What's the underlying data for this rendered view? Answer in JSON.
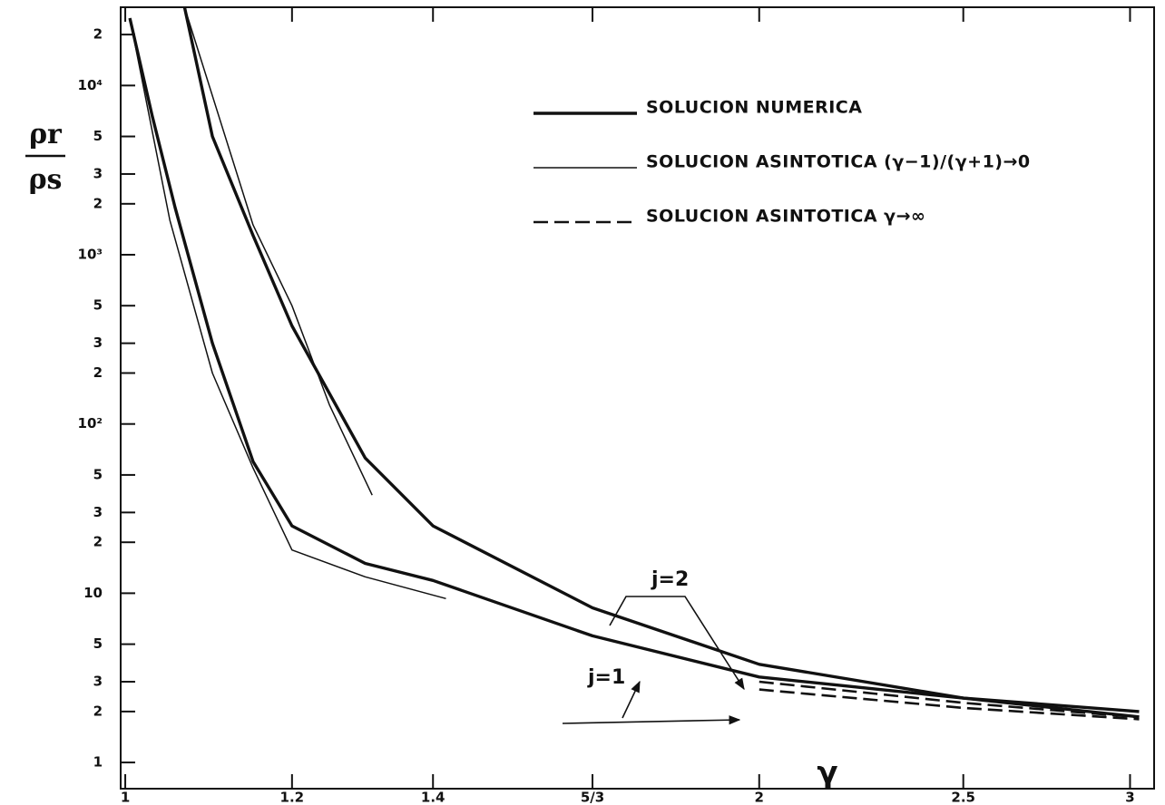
{
  "chart_data": {
    "type": "line",
    "y_label_top": "ρr",
    "y_label_bottom": "ρs",
    "x_label": "γ",
    "xscale": "log",
    "yscale": "log",
    "xlim": [
      0.995,
      3.08
    ],
    "ylim": [
      0.7,
      29000
    ],
    "xticks": [
      1,
      1.2,
      1.4,
      {
        "value": 1.6667,
        "label": "5/3"
      },
      2,
      2.5,
      3
    ],
    "yticks": [
      1,
      2,
      3,
      5,
      10,
      {
        "value": 20,
        "label": "2"
      },
      {
        "value": 30,
        "label": "3"
      },
      {
        "value": 50,
        "label": "5"
      },
      {
        "value": 100,
        "label": "10²"
      },
      {
        "value": 200,
        "label": "2"
      },
      {
        "value": 300,
        "label": "3"
      },
      {
        "value": 500,
        "label": "5"
      },
      {
        "value": 1000,
        "label": "10³"
      },
      {
        "value": 2000,
        "label": "2"
      },
      {
        "value": 3000,
        "label": "3"
      },
      {
        "value": 5000,
        "label": "5"
      },
      {
        "value": 10000,
        "label": "10⁴"
      },
      {
        "value": 20000,
        "label": "2"
      }
    ],
    "legend": [
      {
        "label": "SOLUCION NUMERICA",
        "style": "thick"
      },
      {
        "label": "SOLUCION ASINTOTICA (γ−1)/(γ+1)→0",
        "style": "thin"
      },
      {
        "label": "SOLUCION ASINTOTICA γ→∞",
        "style": "dashed"
      }
    ],
    "annotations": [
      "j=2",
      "j=1"
    ],
    "color": "#111",
    "series": [
      {
        "style": "thick",
        "x": [
          1.005,
          1.03,
          1.056,
          1.1,
          1.15,
          1.2,
          1.3,
          1.4,
          1.6667,
          2,
          2.5,
          3.03
        ],
        "values": [
          25000,
          6600,
          1900,
          300,
          60,
          25,
          15,
          11.9,
          5.6,
          3.2,
          2.4,
          1.86
        ]
      },
      {
        "style": "thick",
        "x": [
          1.067,
          1.1,
          1.15,
          1.2,
          1.3,
          1.4,
          1.6667,
          2,
          2.5,
          3.03
        ],
        "values": [
          29000,
          5000,
          1300,
          380,
          63,
          25,
          8.2,
          3.8,
          2.4,
          2.0
        ]
      },
      {
        "style": "thin",
        "x": [
          1.005,
          1.05,
          1.1,
          1.15,
          1.2,
          1.3,
          1.42
        ],
        "values": [
          25000,
          1600,
          200,
          55,
          18,
          12.5,
          9.3
        ]
      },
      {
        "style": "thin",
        "x": [
          1.067,
          1.15,
          1.2,
          1.25,
          1.31
        ],
        "values": [
          29000,
          1500,
          500,
          130,
          38
        ]
      },
      {
        "style": "dashed",
        "x": [
          2,
          2.5,
          3.03
        ],
        "values": [
          2.7,
          2.1,
          1.8
        ]
      },
      {
        "style": "dashed",
        "x": [
          2,
          2.5,
          3.03
        ],
        "values": [
          3.0,
          2.25,
          1.85
        ]
      }
    ]
  }
}
